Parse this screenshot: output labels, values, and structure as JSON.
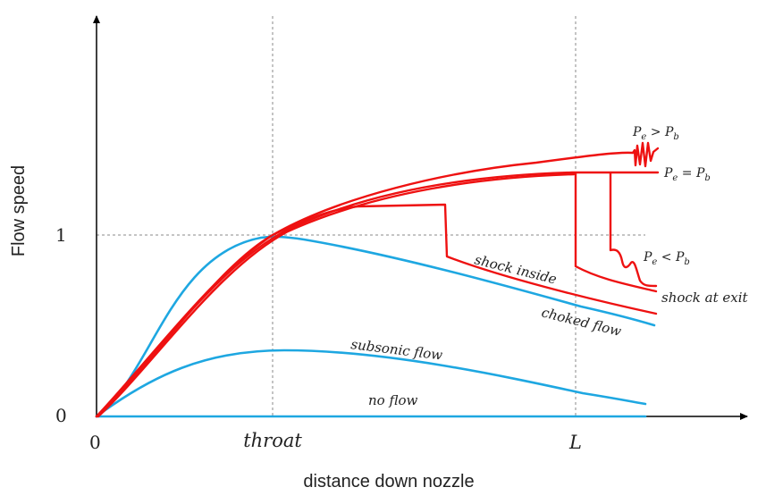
{
  "axes": {
    "y_label": "Flow speed",
    "x_label": "distance down nozzle",
    "y_ticks": [
      "0",
      "1"
    ],
    "x_ticks": [
      "0",
      "throat",
      "L"
    ]
  },
  "curve_labels": {
    "no_flow": "no flow",
    "subsonic_flow": "subsonic flow",
    "choked_flow": "choked flow",
    "shock_inside": "shock inside",
    "shock_at_exit": "shock at exit"
  },
  "pressure_labels": {
    "pe_gt_pb": {
      "left": "P",
      "left_sub": "e",
      "op": " > ",
      "right": "P",
      "right_sub": "b"
    },
    "pe_eq_pb": {
      "left": "P",
      "left_sub": "e",
      "op": " = ",
      "right": "P",
      "right_sub": "b"
    },
    "pe_lt_pb": {
      "left": "P",
      "left_sub": "e",
      "op": " < ",
      "right": "P",
      "right_sub": "b"
    }
  },
  "colors": {
    "subsonic_curves": "#1ea7e1",
    "supersonic_curves": "#ee1111"
  }
}
